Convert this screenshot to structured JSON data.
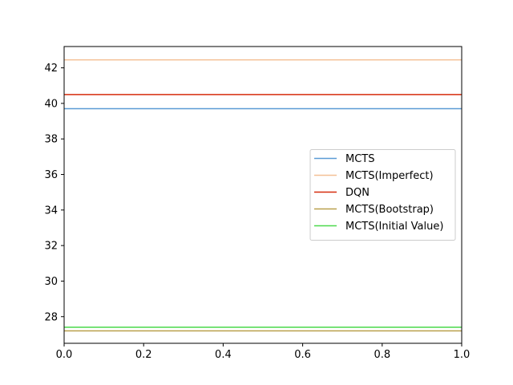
{
  "chart_data": {
    "type": "line",
    "title": "",
    "xlabel": "",
    "ylabel": "",
    "xlim": [
      0.0,
      1.0
    ],
    "ylim": [
      26.5,
      43.2
    ],
    "x_ticks": [
      "0.0",
      "0.2",
      "0.4",
      "0.6",
      "0.8",
      "1.0"
    ],
    "y_ticks": [
      "28",
      "30",
      "32",
      "34",
      "36",
      "38",
      "40",
      "42"
    ],
    "grid": false,
    "legend_position": "center-right",
    "series": [
      {
        "name": "MCTS",
        "color": "#5b9bd5",
        "x": [
          0.0,
          1.0
        ],
        "values": [
          39.7,
          39.7
        ]
      },
      {
        "name": "MCTS(Imperfect)",
        "color": "#f4c095",
        "x": [
          0.0,
          1.0
        ],
        "values": [
          42.45,
          42.45
        ]
      },
      {
        "name": "DQN",
        "color": "#d62b0c",
        "x": [
          0.0,
          1.0
        ],
        "values": [
          40.5,
          40.5
        ]
      },
      {
        "name": "MCTS(Bootstrap)",
        "color": "#b9a04c",
        "x": [
          0.0,
          1.0
        ],
        "values": [
          27.2,
          27.2
        ]
      },
      {
        "name": "MCTS(Initial Value)",
        "color": "#4cd94c",
        "x": [
          0.0,
          1.0
        ],
        "values": [
          27.4,
          27.4
        ]
      }
    ]
  }
}
